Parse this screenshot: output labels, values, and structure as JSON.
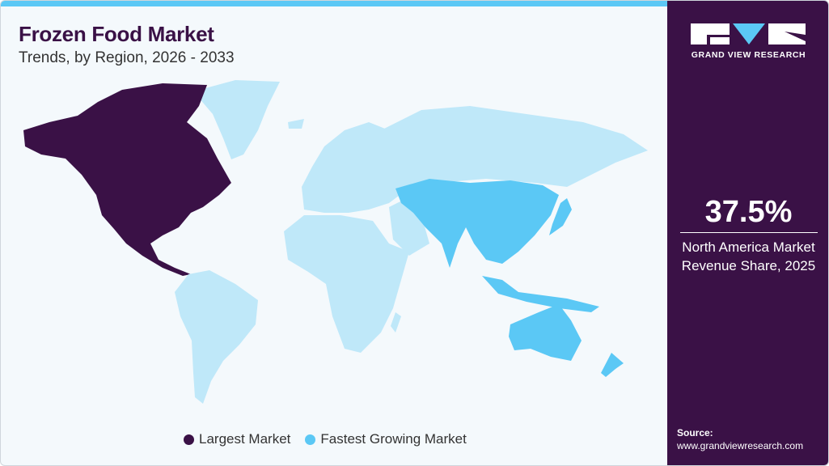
{
  "header": {
    "title": "Frozen Food Market",
    "subtitle": "Trends, by Region, 2026 - 2033"
  },
  "brand": {
    "name": "GRAND VIEW RESEARCH"
  },
  "stat": {
    "value": "37.5%",
    "label_line1": "North America Market",
    "label_line2": "Revenue Share, 2025"
  },
  "source": {
    "label": "Source:",
    "url": "www.grandviewresearch.com"
  },
  "legend": [
    {
      "label": "Largest Market",
      "color": "#3a1146"
    },
    {
      "label": "Fastest Growing Market",
      "color": "#5bc8f5"
    }
  ],
  "map": {
    "regions": [
      {
        "name": "North America",
        "category": "Largest Market"
      },
      {
        "name": "Asia Pacific",
        "category": "Fastest Growing Market"
      },
      {
        "name": "Europe",
        "category": "Other"
      },
      {
        "name": "Latin America",
        "category": "Other"
      },
      {
        "name": "Middle East & Africa",
        "category": "Other"
      }
    ],
    "colors": {
      "largest": "#3a1146",
      "fastest": "#5bc8f5",
      "other": "#bfe8f9"
    }
  }
}
